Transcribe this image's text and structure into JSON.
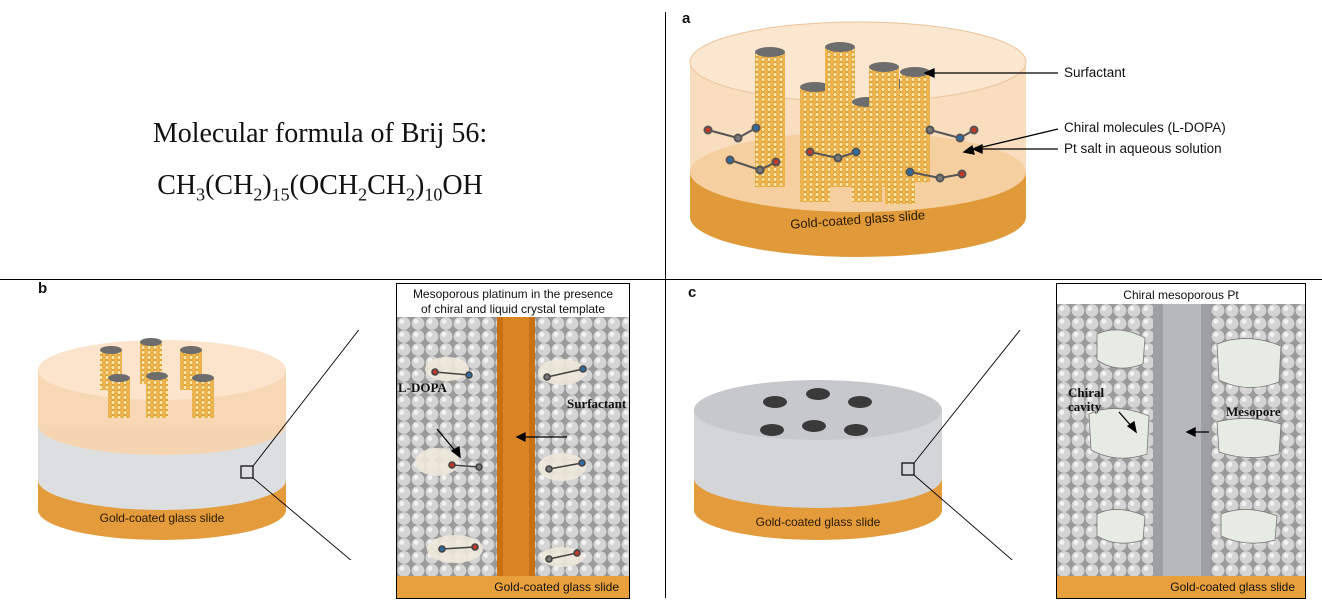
{
  "formula": {
    "title": "Molecular formula of Brij 56:",
    "parts": [
      {
        "t": "CH",
        "s": "3"
      },
      {
        "t": "(CH",
        "s": "2"
      },
      {
        "t": ")",
        "s": "15"
      },
      {
        "t": "(OCH",
        "s": "2"
      },
      {
        "t": "CH",
        "s": "2"
      },
      {
        "t": ")",
        "s": "10"
      },
      {
        "t": "OH",
        "s": ""
      }
    ]
  },
  "panel_a": {
    "letter": "a",
    "labels": {
      "surfactant": "Surfactant",
      "chiral": "Chiral molecules (L-DOPA)",
      "pt_salt": "Pt salt in aqueous solution"
    },
    "slide": "Gold-coated glass slide"
  },
  "panel_b": {
    "letter": "b",
    "slide": "Gold-coated glass slide",
    "inset_title_1": "Mesoporous platinum in the presence",
    "inset_title_2": "of chiral and liquid crystal template",
    "ldopa": "L-DOPA",
    "surfactant": "Surfactant",
    "inset_slide": "Gold-coated glass slide"
  },
  "panel_c": {
    "letter": "c",
    "slide": "Gold-coated glass slide",
    "inset_title": "Chiral mesoporous Pt",
    "chiral_1": "Chiral",
    "chiral_2": "cavity",
    "mesopore": "Mesopore",
    "inset_slide": "Gold-coated glass slide"
  },
  "colors": {
    "gold": "#e8a03c",
    "gold_dark": "#c9781e",
    "peach": "#f6dcc0",
    "grey": "#d9dbdd",
    "sphere": "#cfcfcf"
  }
}
